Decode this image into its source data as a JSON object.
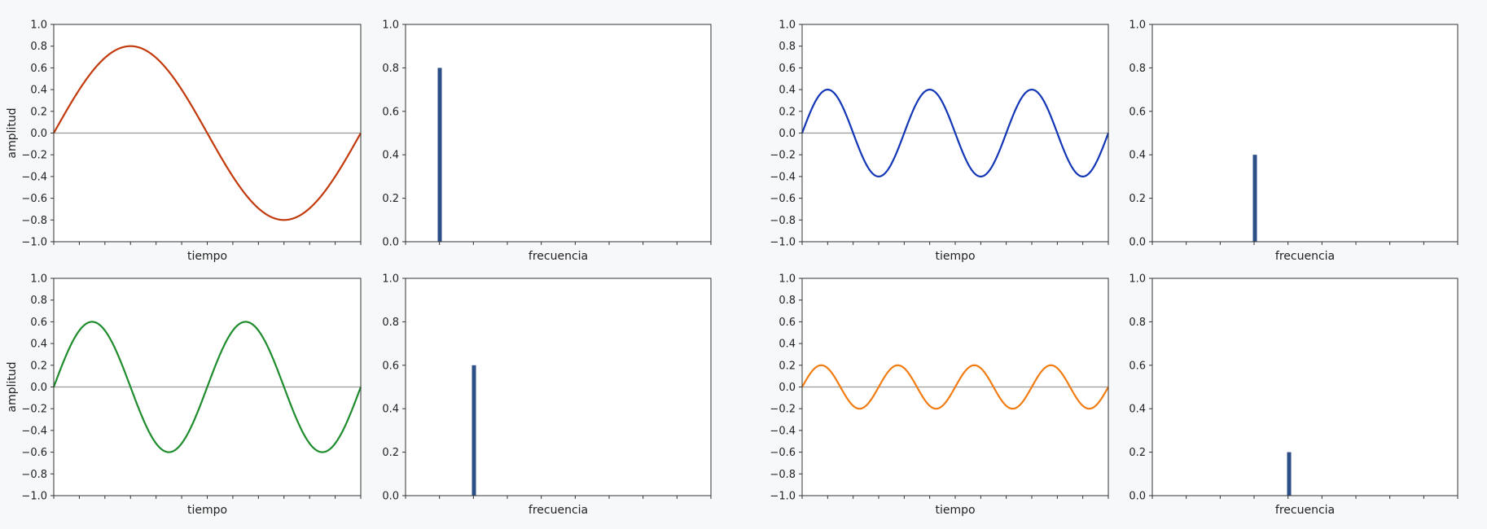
{
  "colors": {
    "background": "#f7f8fa",
    "plot_bg": "#ffffff",
    "axis": "#333333",
    "zero_line": "#9a9a9a",
    "bar": "#2b4f86"
  },
  "chart_data": [
    {
      "id": "time-a",
      "type": "line",
      "title": "",
      "xlabel": "tiempo",
      "ylabel": "amplitud",
      "ylim": [
        -1.0,
        1.0
      ],
      "yticks": [
        "−1.0",
        "−0.8",
        "−0.6",
        "−0.4",
        "−0.2",
        "0.0",
        "0.2",
        "0.4",
        "0.6",
        "0.8",
        "1.0"
      ],
      "xtick_count": 13,
      "xticklabels_visible": false,
      "series": [
        {
          "amplitude": 0.8,
          "cycles": 1,
          "color": "#c23a0b"
        }
      ],
      "zero_line": true,
      "grid": false
    },
    {
      "id": "freq-a",
      "type": "bar",
      "title": "",
      "xlabel": "frecuencia",
      "ylabel": "",
      "ylim": [
        0.0,
        1.0
      ],
      "yticks": [
        "0.0",
        "0.2",
        "0.4",
        "0.6",
        "0.8",
        "1.0"
      ],
      "xtick_count": 10,
      "xticklabels_visible": false,
      "bars": [
        {
          "frequency": 1,
          "value": 0.8
        }
      ],
      "grid": false
    },
    {
      "id": "time-b",
      "type": "line",
      "title": "",
      "xlabel": "tiempo",
      "ylabel": "",
      "ylim": [
        -1.0,
        1.0
      ],
      "yticks": [
        "−1.0",
        "−0.8",
        "−0.6",
        "−0.4",
        "−0.2",
        "0.0",
        "0.2",
        "0.4",
        "0.6",
        "0.8",
        "1.0"
      ],
      "xtick_count": 13,
      "xticklabels_visible": false,
      "series": [
        {
          "amplitude": 0.4,
          "cycles": 3,
          "color": "#1236b6"
        }
      ],
      "zero_line": true,
      "grid": false
    },
    {
      "id": "freq-b",
      "type": "bar",
      "title": "",
      "xlabel": "frecuencia",
      "ylabel": "",
      "ylim": [
        0.0,
        1.0
      ],
      "yticks": [
        "0.0",
        "0.2",
        "0.4",
        "0.6",
        "0.8",
        "1.0"
      ],
      "xtick_count": 10,
      "xticklabels_visible": false,
      "bars": [
        {
          "frequency": 3,
          "value": 0.4
        }
      ],
      "grid": false
    },
    {
      "id": "time-c",
      "type": "line",
      "title": "",
      "xlabel": "tiempo",
      "ylabel": "amplitud",
      "ylim": [
        -1.0,
        1.0
      ],
      "yticks": [
        "−1.0",
        "−0.8",
        "−0.6",
        "−0.4",
        "−0.2",
        "0.0",
        "0.2",
        "0.4",
        "0.6",
        "0.8",
        "1.0"
      ],
      "xtick_count": 13,
      "xticklabels_visible": false,
      "series": [
        {
          "amplitude": 0.6,
          "cycles": 2,
          "color": "#1e8c2c"
        }
      ],
      "zero_line": true,
      "grid": false
    },
    {
      "id": "freq-c",
      "type": "bar",
      "title": "",
      "xlabel": "frecuencia",
      "ylabel": "",
      "ylim": [
        0.0,
        1.0
      ],
      "yticks": [
        "0.0",
        "0.2",
        "0.4",
        "0.6",
        "0.8",
        "1.0"
      ],
      "xtick_count": 10,
      "xticklabels_visible": false,
      "bars": [
        {
          "frequency": 2,
          "value": 0.6
        }
      ],
      "grid": false
    },
    {
      "id": "time-d",
      "type": "line",
      "title": "",
      "xlabel": "tiempo",
      "ylabel": "",
      "ylim": [
        -1.0,
        1.0
      ],
      "yticks": [
        "−1.0",
        "−0.8",
        "−0.6",
        "−0.4",
        "−0.2",
        "0.0",
        "0.2",
        "0.4",
        "0.6",
        "0.8",
        "1.0"
      ],
      "xtick_count": 13,
      "xticklabels_visible": false,
      "series": [
        {
          "amplitude": 0.2,
          "cycles": 4,
          "color": "#f07c12"
        }
      ],
      "zero_line": true,
      "grid": false
    },
    {
      "id": "freq-d",
      "type": "bar",
      "title": "",
      "xlabel": "frecuencia",
      "ylabel": "",
      "ylim": [
        0.0,
        1.0
      ],
      "yticks": [
        "0.0",
        "0.2",
        "0.4",
        "0.6",
        "0.8",
        "1.0"
      ],
      "xtick_count": 10,
      "xticklabels_visible": false,
      "bars": [
        {
          "frequency": 4,
          "value": 0.2
        }
      ],
      "grid": false
    }
  ]
}
